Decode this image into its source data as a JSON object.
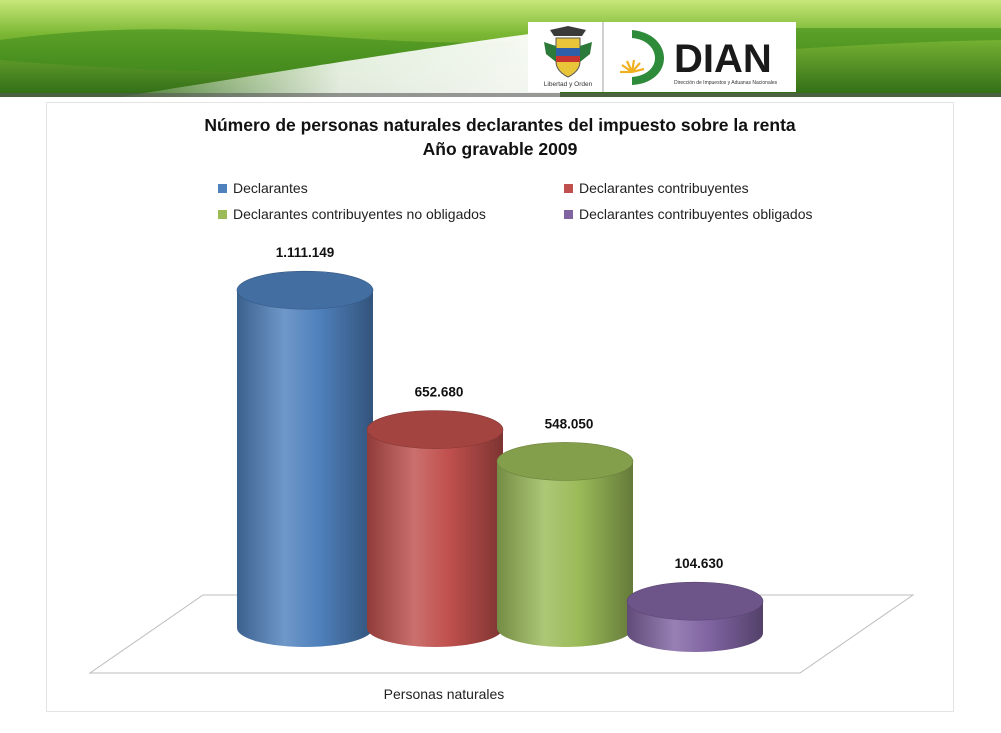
{
  "header": {
    "logo_text": "DIAN",
    "logo_subtitle": "Dirección de Impuestos y Aduanas Nacionales",
    "seal_text": "Libertad y Orden",
    "colors": {
      "band_dark": "#2f6b16",
      "band_light": "#9fd14c"
    }
  },
  "chart_data": {
    "type": "bar",
    "style": "3d-cylinder",
    "title": "Número de personas naturales declarantes del impuesto sobre la renta",
    "subtitle": "Año gravable 2009",
    "categories": [
      "Personas naturales"
    ],
    "ylim": [
      0,
      1200000
    ],
    "grid": false,
    "legend_position": "top",
    "series": [
      {
        "name": "Declarantes",
        "value": 1111149,
        "label": "1.111.149",
        "color": "#4f81bd"
      },
      {
        "name": "Declarantes contribuyentes",
        "value": 652680,
        "label": "652.680",
        "color": "#c0504d"
      },
      {
        "name": "Declarantes contribuyentes no obligados",
        "value": 548050,
        "label": "548.050",
        "color": "#9bbb59"
      },
      {
        "name": "Declarantes contribuyentes obligados",
        "value": 104630,
        "label": "104.630",
        "color": "#8064a2"
      }
    ]
  }
}
